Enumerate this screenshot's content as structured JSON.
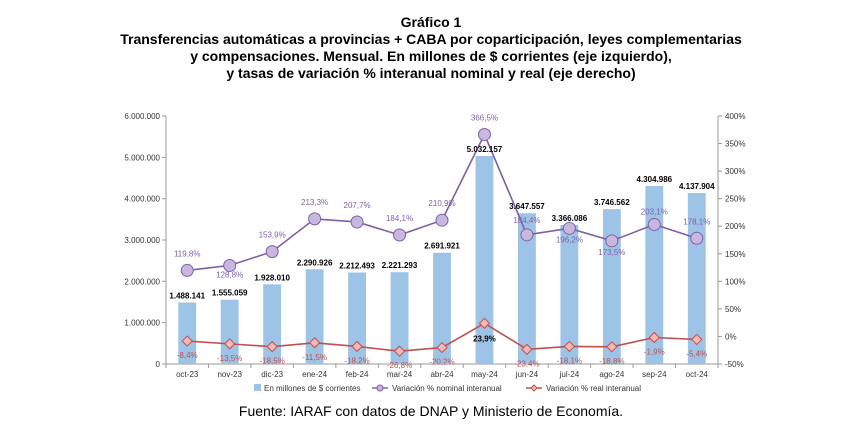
{
  "chart_data": {
    "type": "bar",
    "title_lines": [
      "Gráfico 1",
      "Transferencias automáticas a provincias + CABA por coparticipación, leyes complementarias",
      "y compensaciones. Mensual. En millones de $ corrientes (eje izquierdo),",
      "y tasas de variación % interanual nominal y real (eje derecho)"
    ],
    "categories": [
      "oct-23",
      "nov-23",
      "dic-23",
      "ene-24",
      "feb-24",
      "mar-24",
      "abr-24",
      "may-24",
      "jun-24",
      "jul-24",
      "ago-24",
      "sep-24",
      "oct-24"
    ],
    "series": [
      {
        "name": "En millones de $ corrientes",
        "type": "bar",
        "axis": "left",
        "values": [
          1488141,
          1555059,
          1928010,
          2290926,
          2212493,
          2221293,
          2691921,
          5032157,
          3647557,
          3366086,
          3746562,
          4304986,
          4137904
        ],
        "labels": [
          "1.488.141",
          "1.555.059",
          "1.928.010",
          "2.290.926",
          "2.212.493",
          "2.221.293",
          "2.691.921",
          "5.032.157",
          "3.647.557",
          "3.366.086",
          "3.746.562",
          "4.304.986",
          "4.137.904"
        ],
        "color": "#9dc3e6"
      },
      {
        "name": "Variación % nominal interanual",
        "type": "line",
        "axis": "right",
        "values": [
          119.8,
          128.8,
          153.9,
          213.3,
          207.7,
          184.1,
          210.9,
          366.5,
          184.4,
          196.2,
          173.5,
          203.1,
          178.1
        ],
        "labels": [
          "119,8%",
          "128,8%",
          "153,9%",
          "213,3%",
          "207,7%",
          "184,1%",
          "210,9%",
          "366,5%",
          "184,4%",
          "196,2%",
          "173,5%",
          "203,1%",
          "178,1%"
        ],
        "color": "#7f60a8"
      },
      {
        "name": "Variación % real interanual",
        "type": "line",
        "axis": "right",
        "values": [
          -8.4,
          -13.5,
          -18.5,
          -11.5,
          -18.2,
          -26.8,
          -20.2,
          23.9,
          -23.4,
          -18.1,
          -18.8,
          -1.9,
          -5.4
        ],
        "labels": [
          "-8,4%",
          "-13,5%",
          "-18,5%",
          "-11,5%",
          "-18,2%",
          "-26,8%",
          "-20,2%",
          "23,9%",
          "-23,4%",
          "-18,1%",
          "-18,8%",
          "-1,9%",
          "-5,4%"
        ],
        "color": "#c0504d"
      }
    ],
    "y_left": {
      "min": 0,
      "max": 6000000,
      "step": 1000000,
      "tick_labels": [
        "0",
        "1.000.000",
        "2.000.000",
        "3.000.000",
        "4.000.000",
        "5.000.000",
        "6.000.000"
      ]
    },
    "y_right": {
      "min": -50,
      "max": 400,
      "step": 50,
      "tick_labels": [
        "-50%",
        "0%",
        "50%",
        "100%",
        "150%",
        "200%",
        "250%",
        "300%",
        "350%",
        "400%"
      ]
    },
    "grid": false,
    "legend_position": "bottom",
    "source": "Fuente: IARAF con datos de DNAP y Ministerio de Economía."
  }
}
